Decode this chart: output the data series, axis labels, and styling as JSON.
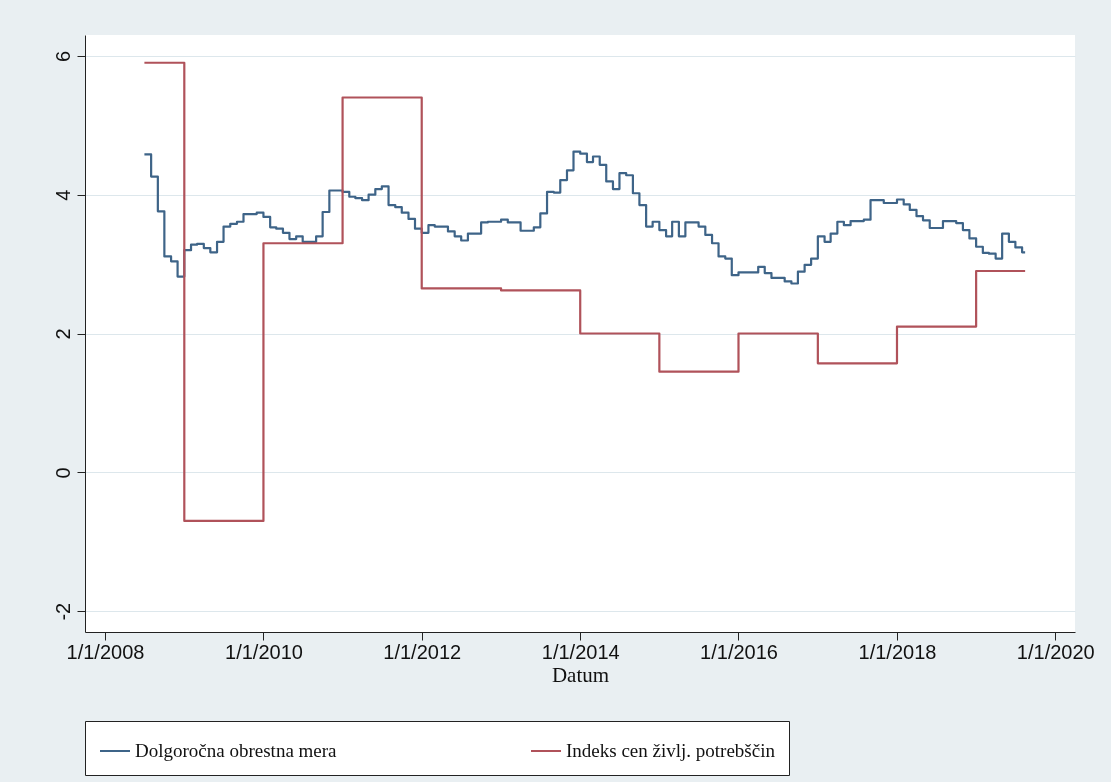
{
  "chart_data": {
    "type": "step",
    "xlabel": "Datum",
    "xlim": [
      "2007-10-01",
      "2020-04-01"
    ],
    "xticks": [
      {
        "value": "2008-01-01",
        "label": "1/1/2008"
      },
      {
        "value": "2010-01-01",
        "label": "1/1/2010"
      },
      {
        "value": "2012-01-01",
        "label": "1/1/2012"
      },
      {
        "value": "2014-01-01",
        "label": "1/1/2014"
      },
      {
        "value": "2016-01-01",
        "label": "1/1/2016"
      },
      {
        "value": "2018-01-01",
        "label": "1/1/2018"
      },
      {
        "value": "2020-01-01",
        "label": "1/1/2020"
      }
    ],
    "ylim": [
      -2.3,
      6.3
    ],
    "yticks": [
      -2,
      0,
      2,
      4,
      6
    ],
    "grid": "y",
    "legend": "bottom",
    "series": [
      {
        "name": "Dolgoročna obrestna mera",
        "color": "#3e6488",
        "x": [
          "2008-07-01",
          "2008-08-01",
          "2008-09-01",
          "2008-10-01",
          "2008-11-01",
          "2008-12-01",
          "2009-01-01",
          "2009-02-01",
          "2009-03-01",
          "2009-04-01",
          "2009-05-01",
          "2009-06-01",
          "2009-07-01",
          "2009-08-01",
          "2009-09-01",
          "2009-10-01",
          "2009-12-01",
          "2010-01-01",
          "2010-02-01",
          "2010-03-01",
          "2010-04-01",
          "2010-05-01",
          "2010-06-01",
          "2010-07-01",
          "2010-09-01",
          "2010-10-01",
          "2010-11-01",
          "2011-01-01",
          "2011-02-01",
          "2011-03-01",
          "2011-04-01",
          "2011-05-01",
          "2011-06-01",
          "2011-07-01",
          "2011-08-01",
          "2011-09-01",
          "2011-10-01",
          "2011-11-01",
          "2011-12-01",
          "2012-01-01",
          "2012-02-01",
          "2012-03-01",
          "2012-05-01",
          "2012-06-01",
          "2012-07-01",
          "2012-08-01",
          "2012-10-01",
          "2012-11-01",
          "2013-01-01",
          "2013-02-01",
          "2013-04-01",
          "2013-06-01",
          "2013-07-01",
          "2013-08-01",
          "2013-09-01",
          "2013-10-01",
          "2013-11-01",
          "2013-12-01",
          "2014-01-01",
          "2014-02-01",
          "2014-03-01",
          "2014-04-01",
          "2014-05-01",
          "2014-06-01",
          "2014-07-01",
          "2014-08-01",
          "2014-09-01",
          "2014-10-01",
          "2014-11-01",
          "2014-12-01",
          "2015-01-01",
          "2015-02-01",
          "2015-03-01",
          "2015-04-01",
          "2015-05-01",
          "2015-07-01",
          "2015-08-01",
          "2015-09-01",
          "2015-10-01",
          "2015-11-01",
          "2015-12-01",
          "2016-01-01",
          "2016-04-01",
          "2016-05-01",
          "2016-06-01",
          "2016-08-01",
          "2016-09-01",
          "2016-10-01",
          "2016-11-01",
          "2016-12-01",
          "2017-01-01",
          "2017-02-01",
          "2017-03-01",
          "2017-04-01",
          "2017-05-01",
          "2017-06-01",
          "2017-08-01",
          "2017-09-01",
          "2017-11-01",
          "2018-01-01",
          "2018-02-01",
          "2018-03-01",
          "2018-04-01",
          "2018-05-01",
          "2018-06-01",
          "2018-08-01",
          "2018-10-01",
          "2018-11-01",
          "2018-12-01",
          "2019-01-01",
          "2019-02-01",
          "2019-03-01",
          "2019-04-01",
          "2019-05-01",
          "2019-06-01",
          "2019-07-01",
          "2019-08-01",
          "2019-08-15"
        ],
        "values": [
          4.58,
          4.26,
          3.76,
          3.11,
          3.04,
          2.82,
          3.2,
          3.28,
          3.29,
          3.23,
          3.17,
          3.32,
          3.54,
          3.58,
          3.61,
          3.72,
          3.74,
          3.68,
          3.53,
          3.51,
          3.45,
          3.36,
          3.4,
          3.32,
          3.4,
          3.75,
          4.06,
          4.04,
          3.97,
          3.95,
          3.92,
          4.0,
          4.08,
          4.12,
          3.85,
          3.82,
          3.74,
          3.65,
          3.51,
          3.45,
          3.56,
          3.54,
          3.47,
          3.4,
          3.34,
          3.44,
          3.6,
          3.61,
          3.64,
          3.6,
          3.48,
          3.53,
          3.73,
          4.04,
          4.03,
          4.21,
          4.35,
          4.62,
          4.59,
          4.47,
          4.55,
          4.43,
          4.19,
          4.08,
          4.31,
          4.28,
          4.02,
          3.85,
          3.54,
          3.61,
          3.49,
          3.4,
          3.61,
          3.4,
          3.6,
          3.54,
          3.42,
          3.3,
          3.11,
          3.08,
          2.84,
          2.88,
          2.96,
          2.87,
          2.8,
          2.75,
          2.72,
          2.89,
          2.99,
          3.08,
          3.4,
          3.32,
          3.44,
          3.61,
          3.56,
          3.62,
          3.64,
          3.92,
          3.88,
          3.93,
          3.86,
          3.78,
          3.69,
          3.63,
          3.52,
          3.62,
          3.59,
          3.49,
          3.37,
          3.25,
          3.16,
          3.15,
          3.08,
          3.44,
          3.32,
          3.24,
          3.17,
          3.17
        ]
      },
      {
        "name": "Indeks cen življ. potrebščin",
        "color": "#b0525a",
        "x": [
          "2008-07-01",
          "2009-01-01",
          "2010-01-01",
          "2011-01-01",
          "2012-01-01",
          "2013-01-01",
          "2014-01-01",
          "2015-01-01",
          "2016-01-01",
          "2017-01-01",
          "2018-01-01",
          "2019-01-01",
          "2019-08-15"
        ],
        "values": [
          5.9,
          -0.7,
          3.3,
          5.4,
          2.65,
          2.62,
          2.0,
          1.45,
          2.0,
          1.57,
          2.1,
          2.9,
          2.9
        ]
      }
    ]
  }
}
